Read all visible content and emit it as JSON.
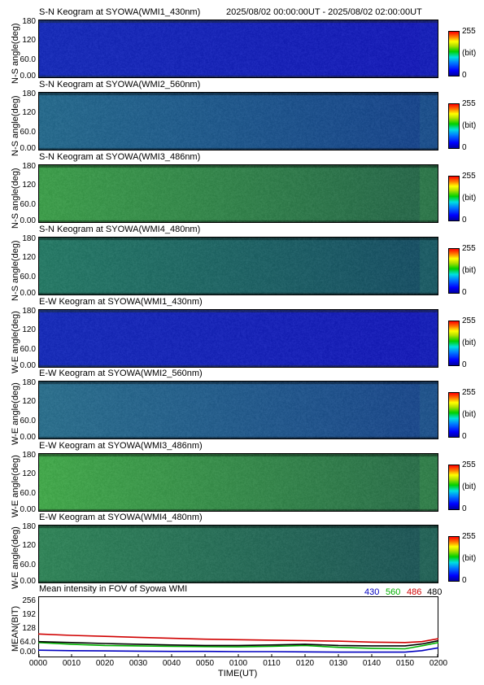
{
  "header": {
    "time_range": "2025/08/02 00:00:00UT - 2025/08/02 02:00:00UT"
  },
  "colorbar": {
    "max": "255",
    "unit": "(bit)",
    "min": "0"
  },
  "keograms": [
    {
      "title": "S-N Keogram at SYOWA(WMI1_430nm)",
      "ylabel": "N-S angle(deg)",
      "ticks": [
        "180",
        "120",
        "60.0",
        "0.00"
      ],
      "base": [
        0.13,
        0.1,
        0.0
      ]
    },
    {
      "title": "S-N Keogram at SYOWA(WMI2_560nm)",
      "ylabel": "N-S angle(deg)",
      "ticks": [
        "180",
        "120",
        "60.0",
        "0.00"
      ],
      "base": [
        0.16,
        0.42,
        0.55
      ]
    },
    {
      "title": "S-N Keogram at SYOWA(WMI3_486nm)",
      "ylabel": "N-S angle(deg)",
      "ticks": [
        "180",
        "120",
        "60.0",
        "0.00"
      ],
      "base": [
        0.25,
        0.62,
        0.3
      ]
    },
    {
      "title": "S-N Keogram at SYOWA(WMI4_480nm)",
      "ylabel": "N-S angle(deg)",
      "ticks": [
        "180",
        "120",
        "60.0",
        "0.00"
      ],
      "base": [
        0.16,
        0.48,
        0.4
      ]
    },
    {
      "title": "E-W Keogram at SYOWA(WMI1_430nm)",
      "ylabel": "W-E angle(deg)",
      "ticks": [
        "180",
        "120",
        "60.0",
        "0.00"
      ],
      "base": [
        0.14,
        0.1,
        0.0
      ]
    },
    {
      "title": "E-W Keogram at SYOWA(WMI2_560nm)",
      "ylabel": "W-E angle(deg)",
      "ticks": [
        "180",
        "120",
        "60.0",
        "0.00"
      ],
      "base": [
        0.18,
        0.44,
        0.55
      ]
    },
    {
      "title": "E-W Keogram at SYOWA(WMI3_486nm)",
      "ylabel": "W-E angle(deg)",
      "ticks": [
        "180",
        "120",
        "60.0",
        "0.00"
      ],
      "base": [
        0.27,
        0.66,
        0.3
      ]
    },
    {
      "title": "E-W Keogram at SYOWA(WMI4_480nm)",
      "ylabel": "W-E angle(deg)",
      "ticks": [
        "180",
        "120",
        "60.0",
        "0.00"
      ],
      "base": [
        0.2,
        0.52,
        0.35
      ]
    }
  ],
  "mean_panel": {
    "title": "Mean intensity in FOV of Syowa WMI",
    "ylabel": "MEAN(BIT)",
    "legend": [
      {
        "label": "430",
        "color": "#0000c0"
      },
      {
        "label": "560",
        "color": "#00b000"
      },
      {
        "label": "486",
        "color": "#d00000"
      },
      {
        "label": "480",
        "color": "#000000"
      }
    ]
  },
  "chart_data": {
    "type": "line",
    "title": "Mean intensity in FOV of Syowa WMI",
    "xlabel": "TIME(UT)",
    "ylabel": "MEAN(BIT)",
    "xlim": [
      0,
      120
    ],
    "ylim": [
      0,
      256
    ],
    "yticks": [
      "256",
      "192",
      "128",
      "64.0",
      "0.00"
    ],
    "xticks": [
      "0000",
      "0010",
      "0020",
      "0030",
      "0040",
      "0050",
      "0100",
      "0110",
      "0120",
      "0130",
      "0140",
      "0150",
      "0200"
    ],
    "x": [
      0,
      10,
      20,
      30,
      40,
      50,
      60,
      70,
      80,
      90,
      100,
      110,
      115,
      120
    ],
    "series": [
      {
        "name": "430",
        "color": "#0000c0",
        "values": [
          30,
          28,
          27,
          26,
          25,
          25,
          24,
          24,
          23,
          22,
          22,
          22,
          28,
          40
        ]
      },
      {
        "name": "560",
        "color": "#00b000",
        "values": [
          62,
          55,
          50,
          48,
          46,
          45,
          44,
          46,
          50,
          42,
          38,
          36,
          48,
          62
        ]
      },
      {
        "name": "486",
        "color": "#d00000",
        "values": [
          98,
          92,
          88,
          84,
          80,
          76,
          74,
          72,
          70,
          68,
          64,
          62,
          66,
          78
        ]
      },
      {
        "name": "480",
        "color": "#000000",
        "values": [
          66,
          62,
          58,
          55,
          52,
          50,
          50,
          52,
          55,
          50,
          48,
          48,
          56,
          70
        ]
      }
    ]
  }
}
